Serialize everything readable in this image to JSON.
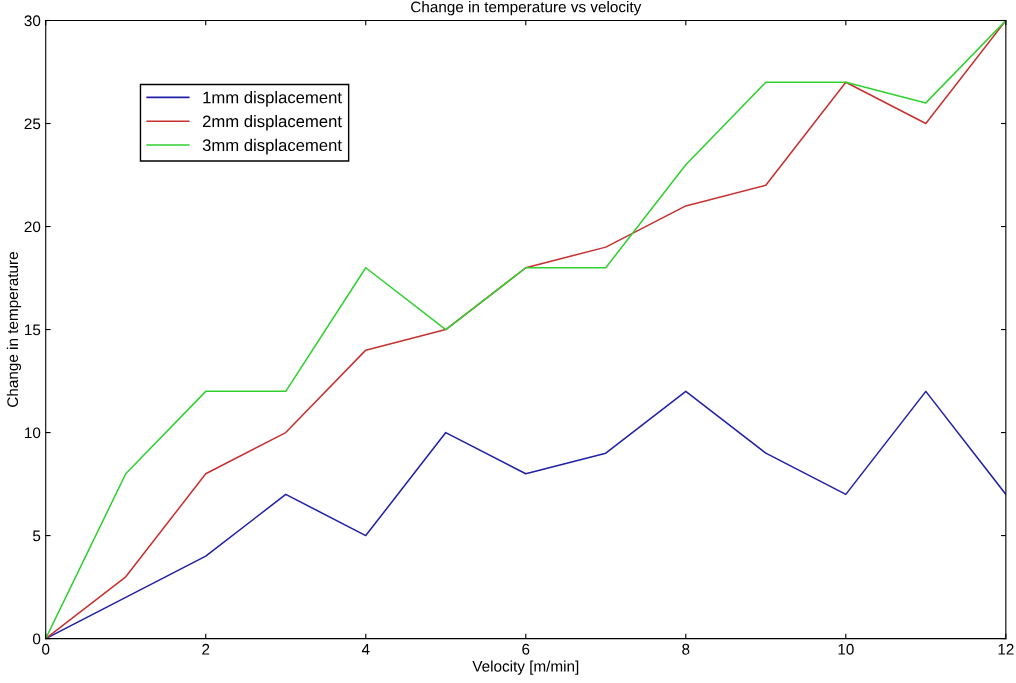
{
  "chart_data": {
    "type": "line",
    "title": "Change in temperature vs velocity",
    "xlabel": "Velocity [m/min]",
    "ylabel": "Change in temperature",
    "x": [
      0,
      1,
      2,
      3,
      4,
      5,
      6,
      7,
      8,
      9,
      10,
      11,
      12
    ],
    "series": [
      {
        "name": "1mm displacement",
        "color": "#2020a8",
        "values": [
          0,
          2,
          4,
          7,
          5,
          10,
          8,
          9,
          12,
          9,
          7,
          12,
          7
        ]
      },
      {
        "name": "2mm displacement",
        "color": "#c83030",
        "values": [
          0,
          3,
          8,
          10,
          14,
          15,
          18,
          19,
          21,
          22,
          27,
          25,
          30
        ]
      },
      {
        "name": "3mm displacement",
        "color": "#30d030",
        "values": [
          0,
          8,
          12,
          12,
          18,
          15,
          18,
          18,
          23,
          27,
          27,
          26,
          30
        ]
      }
    ],
    "xlim": [
      0,
      12
    ],
    "xticks": [
      0,
      2,
      4,
      6,
      8,
      10,
      12
    ],
    "ylim": [
      0,
      30
    ],
    "yticks": [
      0,
      5,
      10,
      15,
      20,
      25,
      30
    ],
    "grid": false,
    "legend": "top left",
    "marker": "none",
    "line_style": "solid"
  }
}
